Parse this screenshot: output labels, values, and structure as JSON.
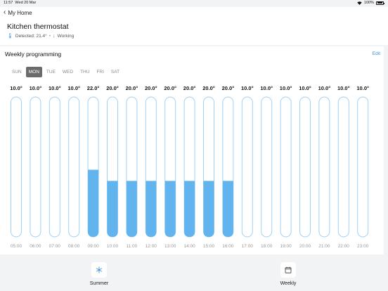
{
  "status": {
    "time": "11:57",
    "date": "Wed 20 Mar",
    "battery": "100%"
  },
  "nav": {
    "back_label": "My Home"
  },
  "thermostat": {
    "title": "Kitchen thermostat",
    "detected": "Detected: 21.4°",
    "state": "Working"
  },
  "card": {
    "title": "Weekly programming",
    "edit_label": "Edit"
  },
  "days": [
    {
      "label": "SUN",
      "active": false
    },
    {
      "label": "MON",
      "active": true
    },
    {
      "label": "TUE",
      "active": false
    },
    {
      "label": "WED",
      "active": false
    },
    {
      "label": "THU",
      "active": false
    },
    {
      "label": "FRI",
      "active": false
    },
    {
      "label": "SAT",
      "active": false
    }
  ],
  "colors": {
    "accent": "#3d8fd6",
    "bar_fill": "#62b4ef",
    "bar_outline": "#9fd0f3"
  },
  "schedule": [
    {
      "hour": "05:00",
      "temp": "10.0°",
      "level": 0
    },
    {
      "hour": "06:00",
      "temp": "10.0°",
      "level": 0
    },
    {
      "hour": "07:00",
      "temp": "10.0°",
      "level": 0
    },
    {
      "hour": "08:00",
      "temp": "10.0°",
      "level": 0
    },
    {
      "hour": "09:00",
      "temp": "22.0°",
      "level": 0.48
    },
    {
      "hour": "10:00",
      "temp": "20.0°",
      "level": 0.4
    },
    {
      "hour": "11:00",
      "temp": "20.0°",
      "level": 0.4
    },
    {
      "hour": "12:00",
      "temp": "20.0°",
      "level": 0.4
    },
    {
      "hour": "13:00",
      "temp": "20.0°",
      "level": 0.4
    },
    {
      "hour": "14:00",
      "temp": "20.0°",
      "level": 0.4
    },
    {
      "hour": "15:00",
      "temp": "20.0°",
      "level": 0.4
    },
    {
      "hour": "16:00",
      "temp": "20.0°",
      "level": 0.4
    },
    {
      "hour": "17:00",
      "temp": "10.0°",
      "level": 0
    },
    {
      "hour": "18:00",
      "temp": "10.0°",
      "level": 0
    },
    {
      "hour": "19:00",
      "temp": "10.0°",
      "level": 0
    },
    {
      "hour": "20:00",
      "temp": "10.0°",
      "level": 0
    },
    {
      "hour": "21:00",
      "temp": "10.0°",
      "level": 0
    },
    {
      "hour": "22:00",
      "temp": "10.0°",
      "level": 0
    },
    {
      "hour": "23:00",
      "temp": "10.0°",
      "level": 0
    }
  ],
  "modes": {
    "summer_label": "Summer",
    "summer_icon": "snowflake-icon",
    "weekly_label": "Weekly",
    "weekly_icon": "calendar-icon"
  }
}
